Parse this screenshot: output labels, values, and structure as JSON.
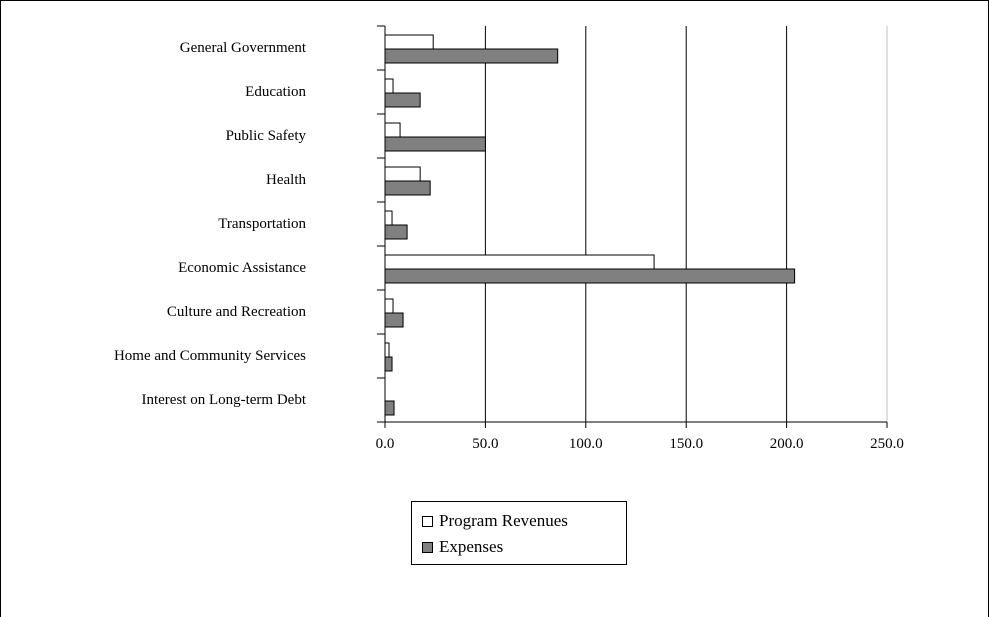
{
  "chart_data": {
    "type": "bar",
    "orientation": "horizontal",
    "categories": [
      "General Government",
      "Education",
      "Public Safety",
      "Health",
      "Transportation",
      "Economic Assistance",
      "Culture and Recreation",
      "Home and Community Services",
      "Interest on Long-term Debt"
    ],
    "series": [
      {
        "name": "Program Revenues",
        "color": "#ffffff",
        "values": [
          24.0,
          4.0,
          7.5,
          17.5,
          3.5,
          134.0,
          4.0,
          2.0,
          0.0
        ]
      },
      {
        "name": "Expenses",
        "color": "#808080",
        "values": [
          86.0,
          17.5,
          50.0,
          22.5,
          11.0,
          204.0,
          9.0,
          3.5,
          4.5
        ]
      }
    ],
    "xlim": [
      0,
      250
    ],
    "xticks": [
      "0.0",
      "50.0",
      "100.0",
      "150.0",
      "200.0",
      "250.0"
    ],
    "grid": true,
    "legend_position": "bottom"
  }
}
